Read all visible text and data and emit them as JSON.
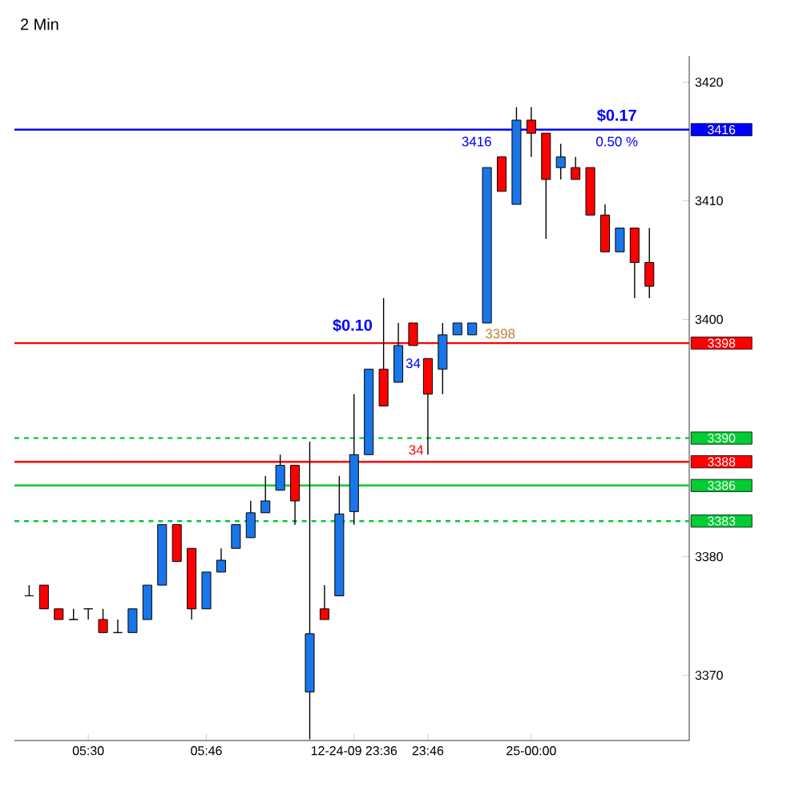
{
  "chart_data": {
    "type": "candlestick",
    "title": "2 Min",
    "categories": [
      null,
      null,
      null,
      null,
      "05:30",
      null,
      null,
      null,
      null,
      null,
      null,
      null,
      "05:46",
      null,
      null,
      null,
      null,
      null,
      null,
      null,
      null,
      null,
      "12-24-09 23:36",
      null,
      null,
      null,
      null,
      "23:46",
      null,
      null,
      null,
      null,
      null,
      null,
      "25-00:00",
      null,
      null,
      null,
      null,
      null,
      null,
      null,
      null
    ],
    "ohlc": [
      [
        3376.7,
        3377.6,
        3376.7,
        3376.7
      ],
      [
        3377.6,
        3377.6,
        3375.6,
        3375.6
      ],
      [
        3375.6,
        3375.6,
        3374.7,
        3374.7
      ],
      [
        3374.7,
        3375.6,
        3374.7,
        3374.7
      ],
      [
        3375.6,
        3375.6,
        3374.7,
        3375.6
      ],
      [
        3374.7,
        3375.6,
        3373.6,
        3373.6
      ],
      [
        3373.6,
        3374.7,
        3373.6,
        3373.6
      ],
      [
        3373.6,
        3375.6,
        3373.6,
        3375.6
      ],
      [
        3374.7,
        3377.6,
        3374.7,
        3377.6
      ],
      [
        3377.6,
        3382.7,
        3377.6,
        3382.7
      ],
      [
        3382.7,
        3382.7,
        3379.6,
        3379.6
      ],
      [
        3380.7,
        3380.7,
        3374.7,
        3375.6
      ],
      [
        3375.6,
        3378.7,
        3375.6,
        3378.7
      ],
      [
        3378.7,
        3380.7,
        3378.7,
        3379.7
      ],
      [
        3380.7,
        3382.7,
        3380.7,
        3382.7
      ],
      [
        3381.6,
        3384.7,
        3381.6,
        3383.7
      ],
      [
        3383.7,
        3386.8,
        3383.7,
        3384.7
      ],
      [
        3385.6,
        3388.6,
        3385.6,
        3387.7
      ],
      [
        3387.7,
        3387.7,
        3382.7,
        3384.7
      ],
      [
        3368.6,
        3389.7,
        3364.6,
        3373.5
      ],
      [
        3375.6,
        3377.6,
        3374.7,
        3374.7
      ],
      [
        3376.7,
        3386.8,
        3376.7,
        3383.6
      ],
      [
        3383.8,
        3393.7,
        3382.7,
        3388.6
      ],
      [
        3388.6,
        3395.8,
        3388.6,
        3395.8
      ],
      [
        3395.8,
        3401.8,
        3392.7,
        3392.7
      ],
      [
        3394.7,
        3399.7,
        3394.7,
        3397.8
      ],
      [
        3399.7,
        3399.7,
        3397.8,
        3397.8
      ],
      [
        3396.7,
        3396.7,
        3388.6,
        3393.7
      ],
      [
        3395.8,
        3399.7,
        3393.7,
        3398.7
      ],
      [
        3398.7,
        3399.7,
        3398.7,
        3399.7
      ],
      [
        3398.7,
        3399.7,
        3398.7,
        3399.7
      ],
      [
        3399.7,
        3412.8,
        3399.7,
        3412.8
      ],
      [
        3413.7,
        3413.7,
        3410.8,
        3410.8
      ],
      [
        3409.7,
        3417.9,
        3409.7,
        3416.8
      ],
      [
        3416.8,
        3417.9,
        3413.7,
        3415.7
      ],
      [
        3415.7,
        3415.7,
        3406.8,
        3411.8
      ],
      [
        3412.8,
        3414.8,
        3411.8,
        3413.7
      ],
      [
        3412.8,
        3413.7,
        3411.8,
        3411.8
      ],
      [
        3412.8,
        3412.8,
        3408.8,
        3408.8
      ],
      [
        3408.8,
        3409.7,
        3405.7,
        3405.7
      ],
      [
        3405.7,
        3407.7,
        3405.7,
        3407.7
      ],
      [
        3407.7,
        3407.7,
        3401.8,
        3404.8
      ],
      [
        3404.8,
        3407.7,
        3401.8,
        3402.8
      ]
    ],
    "colors": [
      "#000000",
      "#ff0000",
      "#ff0000",
      "#000000",
      "#000000",
      "#ff0000",
      "#000000",
      "#1a75e8",
      "#1a75e8",
      "#1a75e8",
      "#ff0000",
      "#ff0000",
      "#1a75e8",
      "#1a75e8",
      "#1a75e8",
      "#1a75e8",
      "#1a75e8",
      "#1a75e8",
      "#ff0000",
      "#1a75e8",
      "#ff0000",
      "#1a75e8",
      "#1a75e8",
      "#1a75e8",
      "#ff0000",
      "#1a75e8",
      "#ff0000",
      "#ff0000",
      "#1a75e8",
      "#1a75e8",
      "#1a75e8",
      "#1a75e8",
      "#ff0000",
      "#1a75e8",
      "#ff0000",
      "#ff0000",
      "#1a75e8",
      "#ff0000",
      "#ff0000",
      "#ff0000",
      "#1a75e8",
      "#ff0000",
      "#ff0000"
    ],
    "ylim": [
      3364.5,
      3422.2
    ],
    "yticks": [
      3370,
      3380,
      3400,
      3410,
      3420
    ],
    "ref_lines": [
      {
        "axis": "y",
        "value": 3416,
        "label": "3416",
        "color": "#0000ff",
        "line_style": "solid"
      },
      {
        "axis": "y",
        "value": 3398,
        "label": "3398",
        "color": "#ff0000",
        "line_style": "solid"
      },
      {
        "axis": "y",
        "value": 3390,
        "label": "3390",
        "color": "#00cc33",
        "line_style": "dashed"
      },
      {
        "axis": "y",
        "value": 3388,
        "label": "3388",
        "color": "#ff0000",
        "line_style": "solid"
      },
      {
        "axis": "y",
        "value": 3386,
        "label": "3386",
        "color": "#00cc33",
        "line_style": "solid"
      },
      {
        "axis": "y",
        "value": 3383,
        "label": "3383",
        "color": "#00cc33",
        "line_style": "dashed"
      }
    ],
    "annotations": [
      "$0.10",
      "34",
      "34",
      "$0.17",
      "3416",
      "0.50 %",
      "3398"
    ]
  }
}
